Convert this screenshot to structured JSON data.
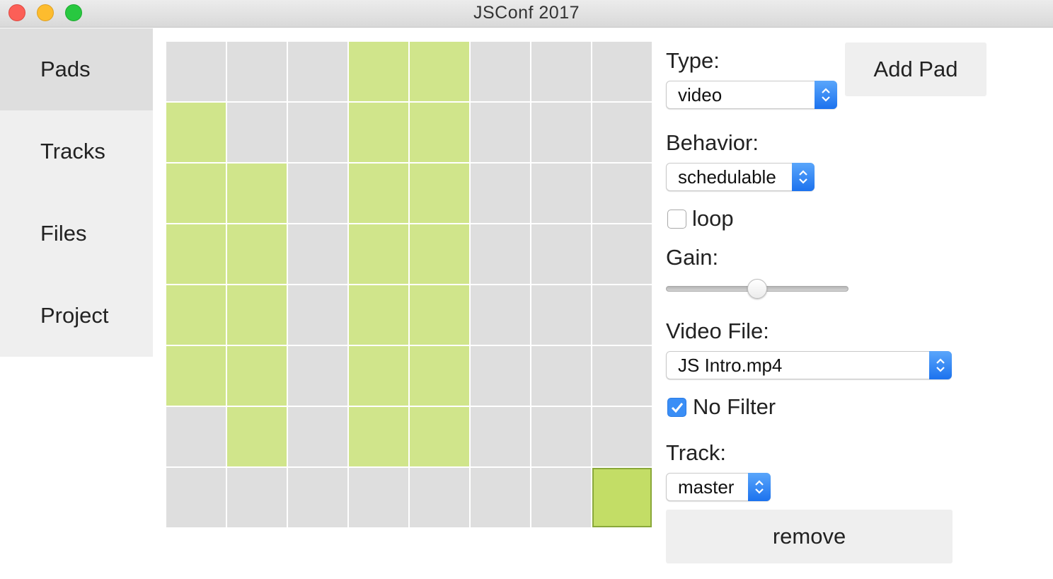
{
  "window": {
    "title": "JSConf 2017"
  },
  "sidebar": {
    "items": [
      {
        "label": "Pads",
        "active": true
      },
      {
        "label": "Tracks",
        "active": false
      },
      {
        "label": "Files",
        "active": false
      },
      {
        "label": "Project",
        "active": false
      }
    ]
  },
  "grid": {
    "rows": 8,
    "cols": 8,
    "active_cells": [
      [
        0,
        3
      ],
      [
        0,
        4
      ],
      [
        1,
        0
      ],
      [
        1,
        3
      ],
      [
        1,
        4
      ],
      [
        2,
        0
      ],
      [
        2,
        1
      ],
      [
        2,
        3
      ],
      [
        2,
        4
      ],
      [
        3,
        0
      ],
      [
        3,
        1
      ],
      [
        3,
        3
      ],
      [
        3,
        4
      ],
      [
        4,
        0
      ],
      [
        4,
        1
      ],
      [
        4,
        3
      ],
      [
        4,
        4
      ],
      [
        5,
        0
      ],
      [
        5,
        1
      ],
      [
        5,
        3
      ],
      [
        5,
        4
      ],
      [
        6,
        1
      ],
      [
        6,
        3
      ],
      [
        6,
        4
      ]
    ],
    "selected_cell": [
      7,
      7
    ],
    "colors": {
      "off": "#dedede",
      "on": "#d0e58b",
      "selected": "#c3dd66"
    }
  },
  "panel": {
    "type_label": "Type:",
    "type_value": "video",
    "add_pad_label": "Add Pad",
    "behavior_label": "Behavior:",
    "behavior_value": "schedulable",
    "loop_label": "loop",
    "loop_checked": false,
    "gain_label": "Gain:",
    "gain_value": 0.5,
    "video_file_label": "Video File:",
    "video_file_value": "JS Intro.mp4",
    "no_filter_label": "No Filter",
    "no_filter_checked": true,
    "track_label": "Track:",
    "track_value": "master",
    "remove_label": "remove"
  }
}
